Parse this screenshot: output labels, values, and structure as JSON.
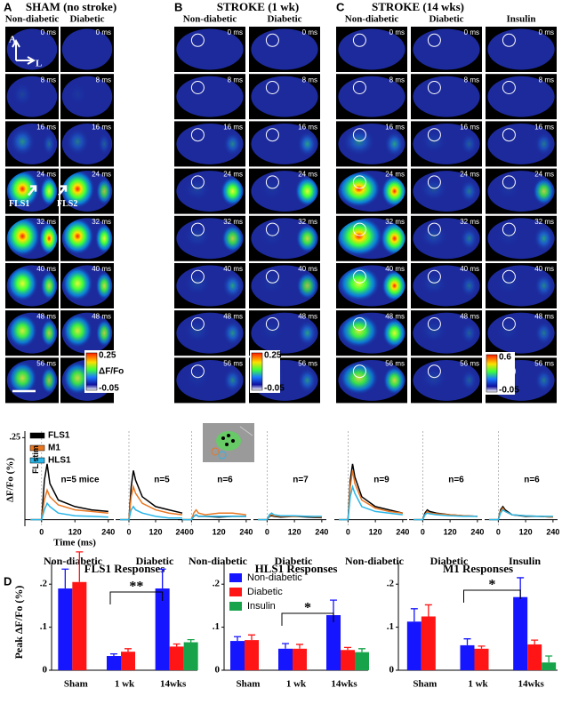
{
  "imaging": {
    "panels": [
      {
        "letter": "A",
        "title": "SHAM (no stroke)",
        "columns": [
          "Non-diabetic",
          "Diabetic"
        ],
        "colorbar": {
          "max": 0.25,
          "label": "ΔF/Fo",
          "min": -0.05
        }
      },
      {
        "letter": "B",
        "title": "STROKE (1 wk)",
        "columns": [
          "Non-diabetic",
          "Diabetic"
        ],
        "colorbar": {
          "max": 0.25,
          "min": -0.05
        }
      },
      {
        "letter": "C",
        "title": "STROKE (14 wks)",
        "columns": [
          "Non-diabetic",
          "Diabetic",
          "Insulin"
        ],
        "colorbar": {
          "max": 0.6,
          "min": -0.05
        }
      }
    ],
    "times": [
      "0 ms",
      "8 ms",
      "16 ms",
      "24 ms",
      "32 ms",
      "40 ms",
      "48 ms",
      "56 ms"
    ],
    "orientation": [
      "A",
      "L"
    ],
    "regions": [
      "FLS1",
      "FLS2"
    ]
  },
  "panel_d_label": "D",
  "chart_data": [
    {
      "type": "line",
      "group": "Non-diabetic",
      "annotation": "n=5 mice",
      "xlabel": "Time (ms)",
      "ylabel": "ΔF/Fo (%)",
      "stim_label": "FL stim",
      "x": [
        -40,
        0,
        10,
        20,
        30,
        60,
        120,
        180,
        240
      ],
      "xlim": [
        -60,
        260
      ],
      "xticks": [
        0,
        120,
        240
      ],
      "ylim": [
        -0.02,
        0.27
      ],
      "yticks": [
        {
          "value": 0.25,
          "label": ".25"
        }
      ],
      "legend": true,
      "series": [
        {
          "name": "FLS1",
          "color": "#000000",
          "values": [
            0,
            0,
            0.12,
            0.17,
            0.11,
            0.06,
            0.04,
            0.03,
            0.025
          ]
        },
        {
          "name": "M1",
          "color": "#e87722",
          "values": [
            0,
            0,
            0.06,
            0.09,
            0.07,
            0.045,
            0.03,
            0.025,
            0.02
          ]
        },
        {
          "name": "HLS1",
          "color": "#29b6e8",
          "values": [
            0,
            0,
            0.03,
            0.05,
            0.04,
            0.02,
            0.012,
            0.01,
            0.008
          ]
        }
      ]
    },
    {
      "type": "line",
      "group": "Diabetic",
      "annotation": "n=5",
      "x": [
        -40,
        0,
        10,
        20,
        30,
        60,
        120,
        180,
        240
      ],
      "xlim": [
        -60,
        260
      ],
      "xticks": [
        0,
        120,
        240
      ],
      "ylim": [
        -0.02,
        0.27
      ],
      "series": [
        {
          "color": "#000000",
          "values": [
            0,
            0,
            0.1,
            0.15,
            0.12,
            0.07,
            0.04,
            0.03,
            0.02
          ]
        },
        {
          "color": "#e87722",
          "values": [
            0,
            0,
            0.07,
            0.1,
            0.08,
            0.05,
            0.03,
            0.02,
            0.015
          ]
        },
        {
          "color": "#29b6e8",
          "values": [
            0,
            0,
            0.03,
            0.04,
            0.03,
            0.02,
            0.01,
            0.005,
            0.005
          ]
        }
      ]
    },
    {
      "type": "line",
      "group": "Non-diabetic",
      "annotation": "n=6",
      "x": [
        -40,
        0,
        10,
        20,
        30,
        60,
        120,
        180,
        240
      ],
      "xlim": [
        -60,
        260
      ],
      "xticks": [
        0,
        120,
        240
      ],
      "ylim": [
        -0.02,
        0.27
      ],
      "series": [
        {
          "color": "#000000",
          "values": [
            0,
            0,
            0.01,
            0.015,
            0.01,
            0.01,
            0.008,
            0.01,
            0.01
          ]
        },
        {
          "color": "#e87722",
          "values": [
            0,
            0,
            0.02,
            0.03,
            0.02,
            0.015,
            0.02,
            0.02,
            0.015
          ]
        },
        {
          "color": "#29b6e8",
          "values": [
            0,
            0,
            0.01,
            0.015,
            0.01,
            0.01,
            0.01,
            0.01,
            0.01
          ]
        }
      ]
    },
    {
      "type": "line",
      "group": "Diabetic",
      "annotation": "n=7",
      "x": [
        -40,
        0,
        10,
        20,
        30,
        60,
        120,
        180,
        240
      ],
      "xlim": [
        -60,
        260
      ],
      "xticks": [
        0,
        120,
        240
      ],
      "ylim": [
        -0.02,
        0.27
      ],
      "series": [
        {
          "color": "#000000",
          "values": [
            0,
            0,
            0.01,
            0.012,
            0.01,
            0.008,
            0.01,
            0.008,
            0.006
          ]
        },
        {
          "color": "#e87722",
          "values": [
            0,
            0,
            0.012,
            0.015,
            0.012,
            0.01,
            0.01,
            0.01,
            0.008
          ]
        },
        {
          "color": "#29b6e8",
          "values": [
            0,
            0,
            0.015,
            0.02,
            0.015,
            0.012,
            0.012,
            0.01,
            0.01
          ]
        }
      ]
    },
    {
      "type": "line",
      "group": "Non-diabetic",
      "annotation": "n=9",
      "x": [
        -40,
        0,
        10,
        20,
        30,
        60,
        120,
        180,
        240
      ],
      "xlim": [
        -60,
        260
      ],
      "xticks": [
        0,
        120,
        240
      ],
      "ylim": [
        -0.02,
        0.27
      ],
      "series": [
        {
          "color": "#000000",
          "values": [
            0,
            0,
            0.12,
            0.17,
            0.13,
            0.07,
            0.04,
            0.03,
            0.02
          ]
        },
        {
          "color": "#e87722",
          "values": [
            0,
            0,
            0.1,
            0.15,
            0.11,
            0.06,
            0.035,
            0.025,
            0.02
          ]
        },
        {
          "color": "#29b6e8",
          "values": [
            0,
            0,
            0.07,
            0.1,
            0.08,
            0.04,
            0.025,
            0.02,
            0.015
          ]
        }
      ]
    },
    {
      "type": "line",
      "group": "Diabetic",
      "annotation": "n=6",
      "x": [
        -40,
        0,
        10,
        20,
        30,
        60,
        120,
        180,
        240
      ],
      "xlim": [
        -60,
        260
      ],
      "xticks": [
        0,
        120,
        240
      ],
      "ylim": [
        -0.02,
        0.27
      ],
      "series": [
        {
          "color": "#000000",
          "values": [
            0,
            0,
            0.02,
            0.03,
            0.025,
            0.02,
            0.015,
            0.012,
            0.01
          ]
        },
        {
          "color": "#e87722",
          "values": [
            0,
            0,
            0.015,
            0.025,
            0.02,
            0.018,
            0.015,
            0.012,
            0.01
          ]
        },
        {
          "color": "#29b6e8",
          "values": [
            0,
            0,
            0.015,
            0.02,
            0.018,
            0.015,
            0.012,
            0.01,
            0.01
          ]
        }
      ]
    },
    {
      "type": "line",
      "group": "Insulin",
      "annotation": "n=6",
      "x": [
        -40,
        0,
        10,
        20,
        30,
        60,
        120,
        180,
        240
      ],
      "xlim": [
        -60,
        260
      ],
      "xticks": [
        0,
        120,
        240
      ],
      "ylim": [
        -0.02,
        0.27
      ],
      "series": [
        {
          "color": "#000000",
          "values": [
            0,
            0,
            0.03,
            0.04,
            0.03,
            0.015,
            0.01,
            0.01,
            0.008
          ]
        },
        {
          "color": "#e87722",
          "values": [
            0,
            0,
            0.025,
            0.035,
            0.025,
            0.015,
            0.012,
            0.01,
            0.008
          ]
        },
        {
          "color": "#29b6e8",
          "values": [
            0,
            0,
            0.02,
            0.03,
            0.025,
            0.015,
            0.012,
            0.01,
            0.01
          ]
        }
      ]
    },
    {
      "type": "bar",
      "title": "FLS1 Responses",
      "ylabel": "Peak  ΔF/Fo (%)",
      "annotation": "**",
      "categories": [
        "Sham",
        "1 wk",
        "14wks"
      ],
      "ylim": [
        0,
        0.25
      ],
      "yticks": [
        0,
        {
          "value": 0.1,
          "label": ".1"
        },
        {
          "value": 0.2,
          "label": ".2"
        }
      ],
      "series": [
        {
          "color": "#1515ff",
          "values": [
            0.19,
            0.033,
            0.19
          ],
          "errors": [
            0.045,
            0.005,
            0.045
          ]
        },
        {
          "color": "#ff1515",
          "values": [
            0.205,
            0.043,
            0.055
          ],
          "errors": [
            0.07,
            0.007,
            0.006
          ]
        },
        {
          "color": "#16a34a",
          "values": [
            null,
            null,
            0.065
          ],
          "errors": [
            null,
            null,
            0.006
          ]
        }
      ]
    },
    {
      "type": "bar",
      "title": "HLS1 Responses",
      "annotation": "*",
      "legend": true,
      "categories": [
        "Sham",
        "1 wk",
        "14wks"
      ],
      "ylim": [
        0,
        0.25
      ],
      "yticks": [
        0,
        {
          "value": 0.1,
          "label": ".1"
        },
        {
          "value": 0.2,
          "label": ".2"
        }
      ],
      "series": [
        {
          "name": "Non-diabetic",
          "color": "#1515ff",
          "values": [
            0.068,
            0.05,
            0.128
          ],
          "errors": [
            0.01,
            0.012,
            0.035
          ]
        },
        {
          "name": "Diabetic",
          "color": "#ff1515",
          "values": [
            0.07,
            0.05,
            0.047
          ],
          "errors": [
            0.012,
            0.01,
            0.006
          ]
        },
        {
          "name": "Insulin",
          "color": "#16a34a",
          "values": [
            null,
            null,
            0.042
          ],
          "errors": [
            null,
            null,
            0.008
          ]
        }
      ]
    },
    {
      "type": "bar",
      "title": "M1 Responses",
      "annotation": "*",
      "categories": [
        "Sham",
        "1 wk",
        "14wks"
      ],
      "ylim": [
        0,
        0.25
      ],
      "yticks": [
        0,
        {
          "value": 0.1,
          "label": ".1"
        },
        {
          "value": 0.2,
          "label": ".2"
        }
      ],
      "series": [
        {
          "color": "#1515ff",
          "values": [
            0.113,
            0.058,
            0.17
          ],
          "errors": [
            0.03,
            0.015,
            0.045
          ]
        },
        {
          "color": "#ff1515",
          "values": [
            0.125,
            0.05,
            0.06
          ],
          "errors": [
            0.027,
            0.006,
            0.01
          ]
        },
        {
          "color": "#16a34a",
          "values": [
            null,
            null,
            0.018
          ],
          "errors": [
            null,
            null,
            0.015
          ]
        }
      ]
    }
  ]
}
